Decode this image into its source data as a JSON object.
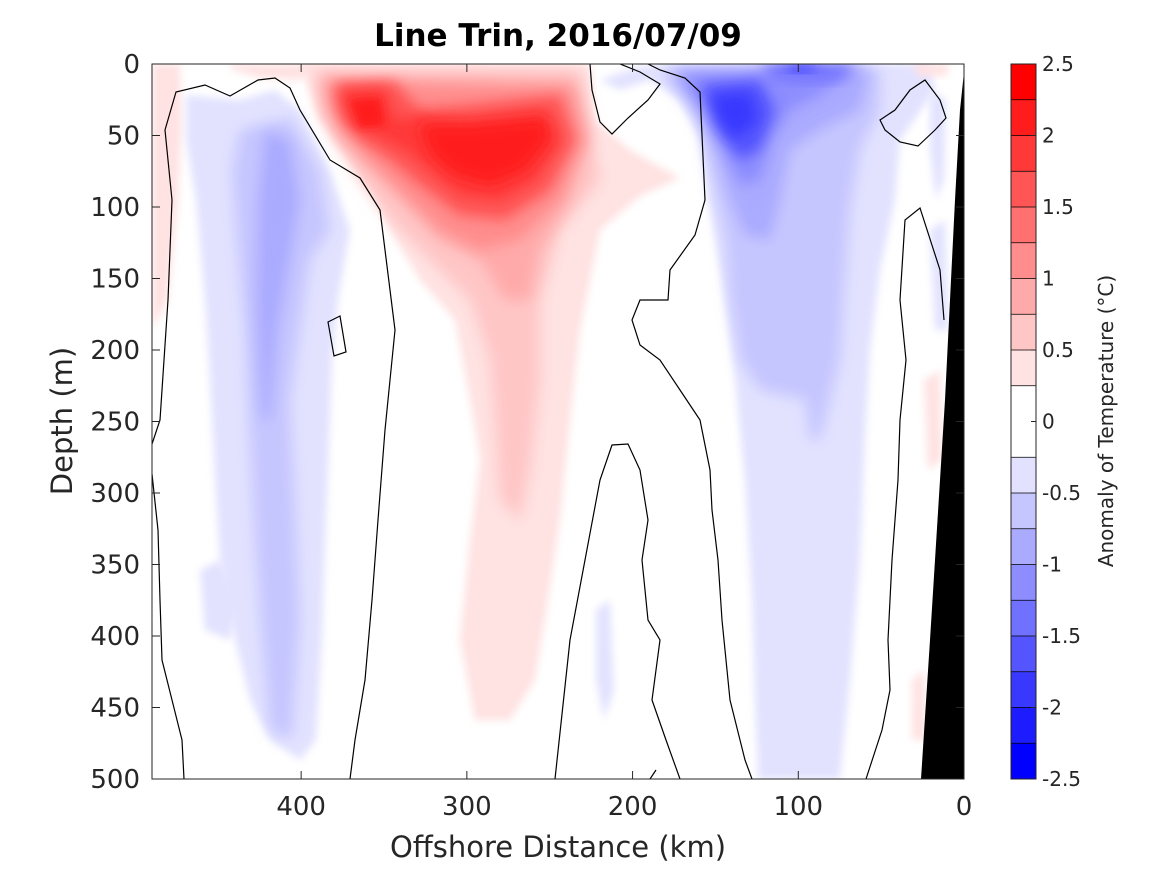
{
  "chart_data": {
    "type": "heatmap",
    "subtype": "filled-contour",
    "title": "Line Trin, 2016/07/09",
    "xlabel": "Offshore Distance (km)",
    "ylabel": "Depth (m)",
    "xlim": [
      490,
      0
    ],
    "x_reversed": true,
    "ylim": [
      0,
      500
    ],
    "y_reversed": true,
    "xticks": [
      400,
      300,
      200,
      100,
      0
    ],
    "yticks": [
      0,
      50,
      100,
      150,
      200,
      250,
      300,
      350,
      400,
      450,
      500
    ],
    "colorbar": {
      "label": "Anomaly of Temperature (°C)",
      "ticks": [
        2.5,
        2,
        1.5,
        1,
        0.5,
        0,
        -0.5,
        -1,
        -1.5,
        -2,
        -2.5
      ],
      "tick_labels": [
        "2.5",
        "2",
        "1.5",
        "1",
        "0.5",
        "0",
        "-0.5",
        "-1",
        "-1.5",
        "-2",
        "-2.5"
      ],
      "levels": [
        2.5,
        2.25,
        2.0,
        1.75,
        1.5,
        1.25,
        1.0,
        0.75,
        0.5,
        0.25,
        -0.25,
        -0.5,
        -0.75,
        -1.0,
        -1.25,
        -1.5,
        -1.75,
        -2.0,
        -2.25,
        -2.5
      ],
      "bands": [
        {
          "from": 2.25,
          "to": 2.5,
          "color": "#ff0000"
        },
        {
          "from": 2.0,
          "to": 2.25,
          "color": "#ff1c1c"
        },
        {
          "from": 1.75,
          "to": 2.0,
          "color": "#ff3838"
        },
        {
          "from": 1.5,
          "to": 1.75,
          "color": "#ff5555"
        },
        {
          "from": 1.25,
          "to": 1.5,
          "color": "#ff7171"
        },
        {
          "from": 1.0,
          "to": 1.25,
          "color": "#ff8d8d"
        },
        {
          "from": 0.75,
          "to": 1.0,
          "color": "#ffaaaa"
        },
        {
          "from": 0.5,
          "to": 0.75,
          "color": "#ffc6c6"
        },
        {
          "from": 0.25,
          "to": 0.5,
          "color": "#ffe2e2"
        },
        {
          "from": -0.25,
          "to": 0.25,
          "color": "#ffffff"
        },
        {
          "from": -0.5,
          "to": -0.25,
          "color": "#e2e2ff"
        },
        {
          "from": -0.75,
          "to": -0.5,
          "color": "#c6c6ff"
        },
        {
          "from": -1.0,
          "to": -0.75,
          "color": "#aaaaff"
        },
        {
          "from": -1.25,
          "to": -1.0,
          "color": "#8d8dff"
        },
        {
          "from": -1.5,
          "to": -1.25,
          "color": "#7171ff"
        },
        {
          "from": -1.75,
          "to": -1.5,
          "color": "#5555ff"
        },
        {
          "from": -2.0,
          "to": -1.75,
          "color": "#3838ff"
        },
        {
          "from": -2.25,
          "to": -2.0,
          "color": "#1c1cff"
        },
        {
          "from": -2.5,
          "to": -2.25,
          "color": "#0000ff"
        }
      ]
    },
    "zero_contour_color": "#000000",
    "bathymetry_color": "#000000",
    "features": [
      {
        "name": "warm anomaly core",
        "x_center_km": 280,
        "depth_center_m": 60,
        "peak_value": 2.1
      },
      {
        "name": "warm anomaly nearshore-of-core",
        "x_center_km": 360,
        "depth_center_m": 40,
        "peak_value": 1.7
      },
      {
        "name": "cold anomaly core",
        "x_center_km": 140,
        "depth_center_m": 35,
        "peak_value": -1.9
      },
      {
        "name": "cold anomaly surface",
        "x_center_km": 100,
        "depth_center_m": 3,
        "peak_value": -1.5
      },
      {
        "name": "offshore cool band",
        "x_center_km": 410,
        "depth_center_m": 150,
        "peak_value": -0.8
      },
      {
        "name": "deep cool band",
        "x_center_km": 95,
        "depth_center_m": 300,
        "peak_value": -0.6
      }
    ]
  }
}
